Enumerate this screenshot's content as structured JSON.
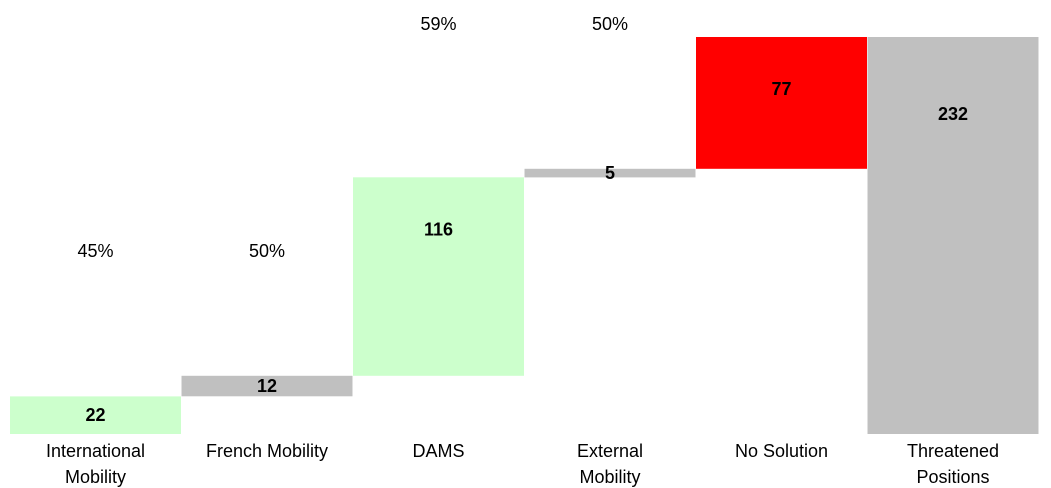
{
  "chart_data": {
    "type": "bar",
    "subtype": "waterfall",
    "categories": [
      [
        "International",
        "Mobility"
      ],
      [
        "French Mobility"
      ],
      [
        "DAMS"
      ],
      [
        "External",
        "Mobility"
      ],
      [
        "No Solution"
      ],
      [
        "Threatened",
        "Positions"
      ]
    ],
    "values": [
      22,
      12,
      116,
      5,
      77,
      232
    ],
    "bar_labels": [
      "22",
      "12",
      "116",
      "5",
      "77",
      "232"
    ],
    "percent_labels": [
      "45%",
      "50%",
      "59%",
      "50%",
      "",
      ""
    ],
    "colors": [
      "#ccffcc",
      "#c0c0c0",
      "#ccffcc",
      "#c0c0c0",
      "#ff0000",
      "#c0c0c0"
    ],
    "bar_kinds": [
      "increment",
      "increment",
      "increment",
      "increment",
      "increment",
      "total"
    ],
    "ylim": [
      0,
      232
    ],
    "grid": false,
    "legend": "none"
  }
}
